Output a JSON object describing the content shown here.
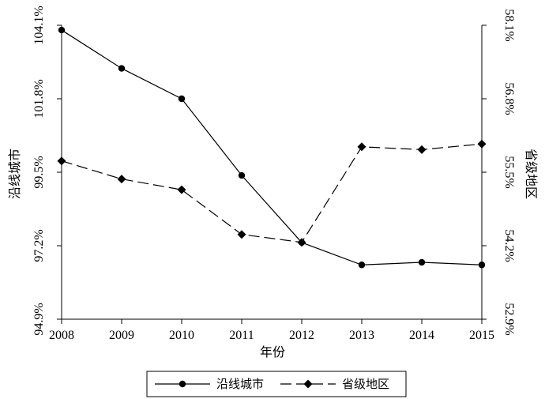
{
  "chart_data": {
    "type": "line",
    "x": [
      2008,
      2009,
      2010,
      2011,
      2012,
      2013,
      2014,
      2015
    ],
    "xlabel": "年份",
    "xlim": [
      2008,
      2015
    ],
    "grid": false,
    "legend_position": "bottom",
    "left_axis": {
      "label": "沿线城市",
      "ticks": [
        "94.9%",
        "97.2%",
        "99.5%",
        "101.8%",
        "104.1%"
      ],
      "tick_values": [
        94.9,
        97.2,
        99.5,
        101.8,
        104.1
      ],
      "ylim": [
        94.9,
        104.1
      ]
    },
    "right_axis": {
      "label": "省级地区",
      "ticks": [
        "52.9%",
        "54.2%",
        "55.5%",
        "56.8%",
        "58.1%"
      ],
      "tick_values": [
        52.9,
        54.2,
        55.5,
        56.8,
        58.1
      ],
      "ylim": [
        52.9,
        58.1
      ]
    },
    "series": [
      {
        "name": "沿线城市",
        "axis": "left",
        "marker": "circle",
        "line_style": "solid",
        "values": [
          103.95,
          102.75,
          101.8,
          99.4,
          97.3,
          96.6,
          96.68,
          96.6
        ]
      },
      {
        "name": "省级地区",
        "axis": "right",
        "marker": "diamond",
        "line_style": "dashed",
        "values": [
          55.7,
          55.38,
          55.19,
          54.4,
          54.26,
          55.95,
          55.9,
          56.0
        ]
      }
    ]
  }
}
